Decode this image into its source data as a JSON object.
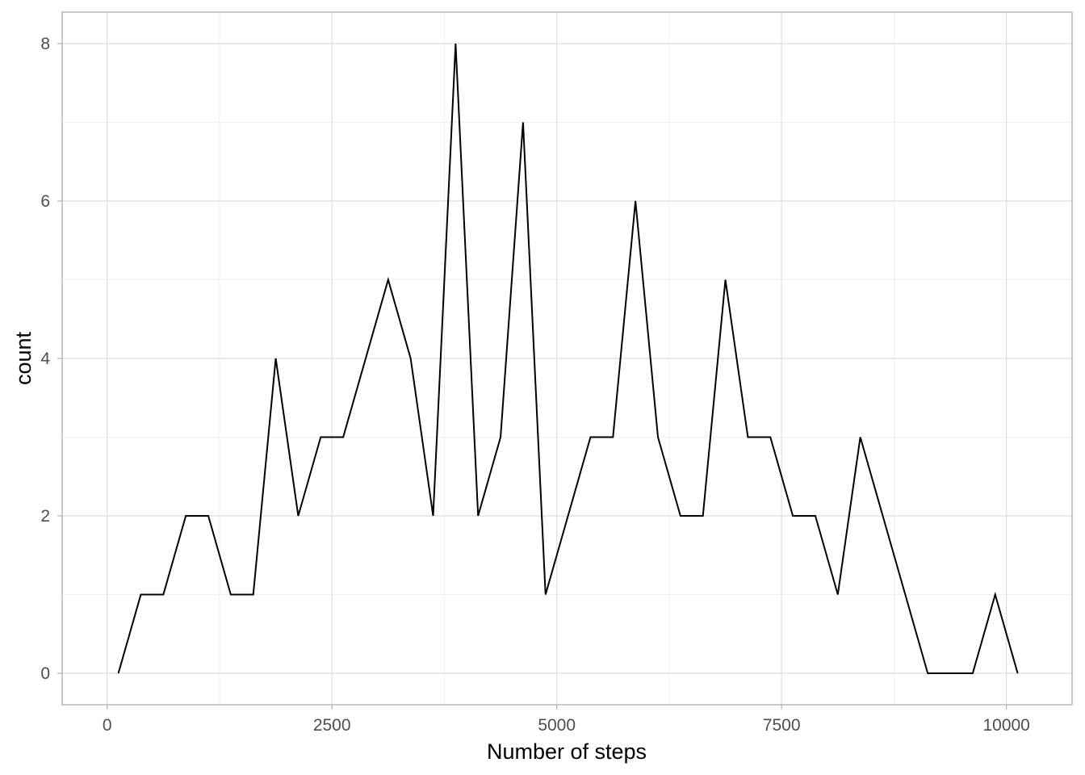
{
  "chart_data": {
    "type": "line",
    "title": "",
    "xlabel": "Number of steps",
    "ylabel": "count",
    "xlim": [
      -500,
      10730
    ],
    "ylim": [
      -0.4,
      8.4
    ],
    "x_ticks": [
      0,
      2500,
      5000,
      7500,
      10000
    ],
    "x_tick_labels": [
      "0",
      "2500",
      "5000",
      "7500",
      "10000"
    ],
    "y_ticks": [
      0,
      2,
      4,
      6,
      8
    ],
    "y_tick_labels": [
      "0",
      "2",
      "4",
      "6",
      "8"
    ],
    "grid": true,
    "legend": "none",
    "series": [
      {
        "color": "#000000",
        "x": [
          125,
          375,
          625,
          875,
          1125,
          1375,
          1625,
          1875,
          2125,
          2375,
          2625,
          2875,
          3125,
          3375,
          3625,
          3875,
          4125,
          4375,
          4625,
          4875,
          5125,
          5375,
          5625,
          5875,
          6125,
          6375,
          6625,
          6875,
          7125,
          7375,
          7625,
          7875,
          8125,
          8375,
          8625,
          8875,
          9125,
          9375,
          9625,
          9875,
          10125
        ],
        "y": [
          0,
          1,
          1,
          2,
          2,
          1,
          1,
          4,
          2,
          3,
          3,
          4,
          5,
          4,
          2,
          8,
          2,
          3,
          7,
          1,
          2,
          3,
          3,
          6,
          3,
          2,
          2,
          5,
          3,
          3,
          2,
          2,
          1,
          3,
          2,
          1,
          0,
          0,
          0,
          1,
          0
        ]
      }
    ]
  }
}
